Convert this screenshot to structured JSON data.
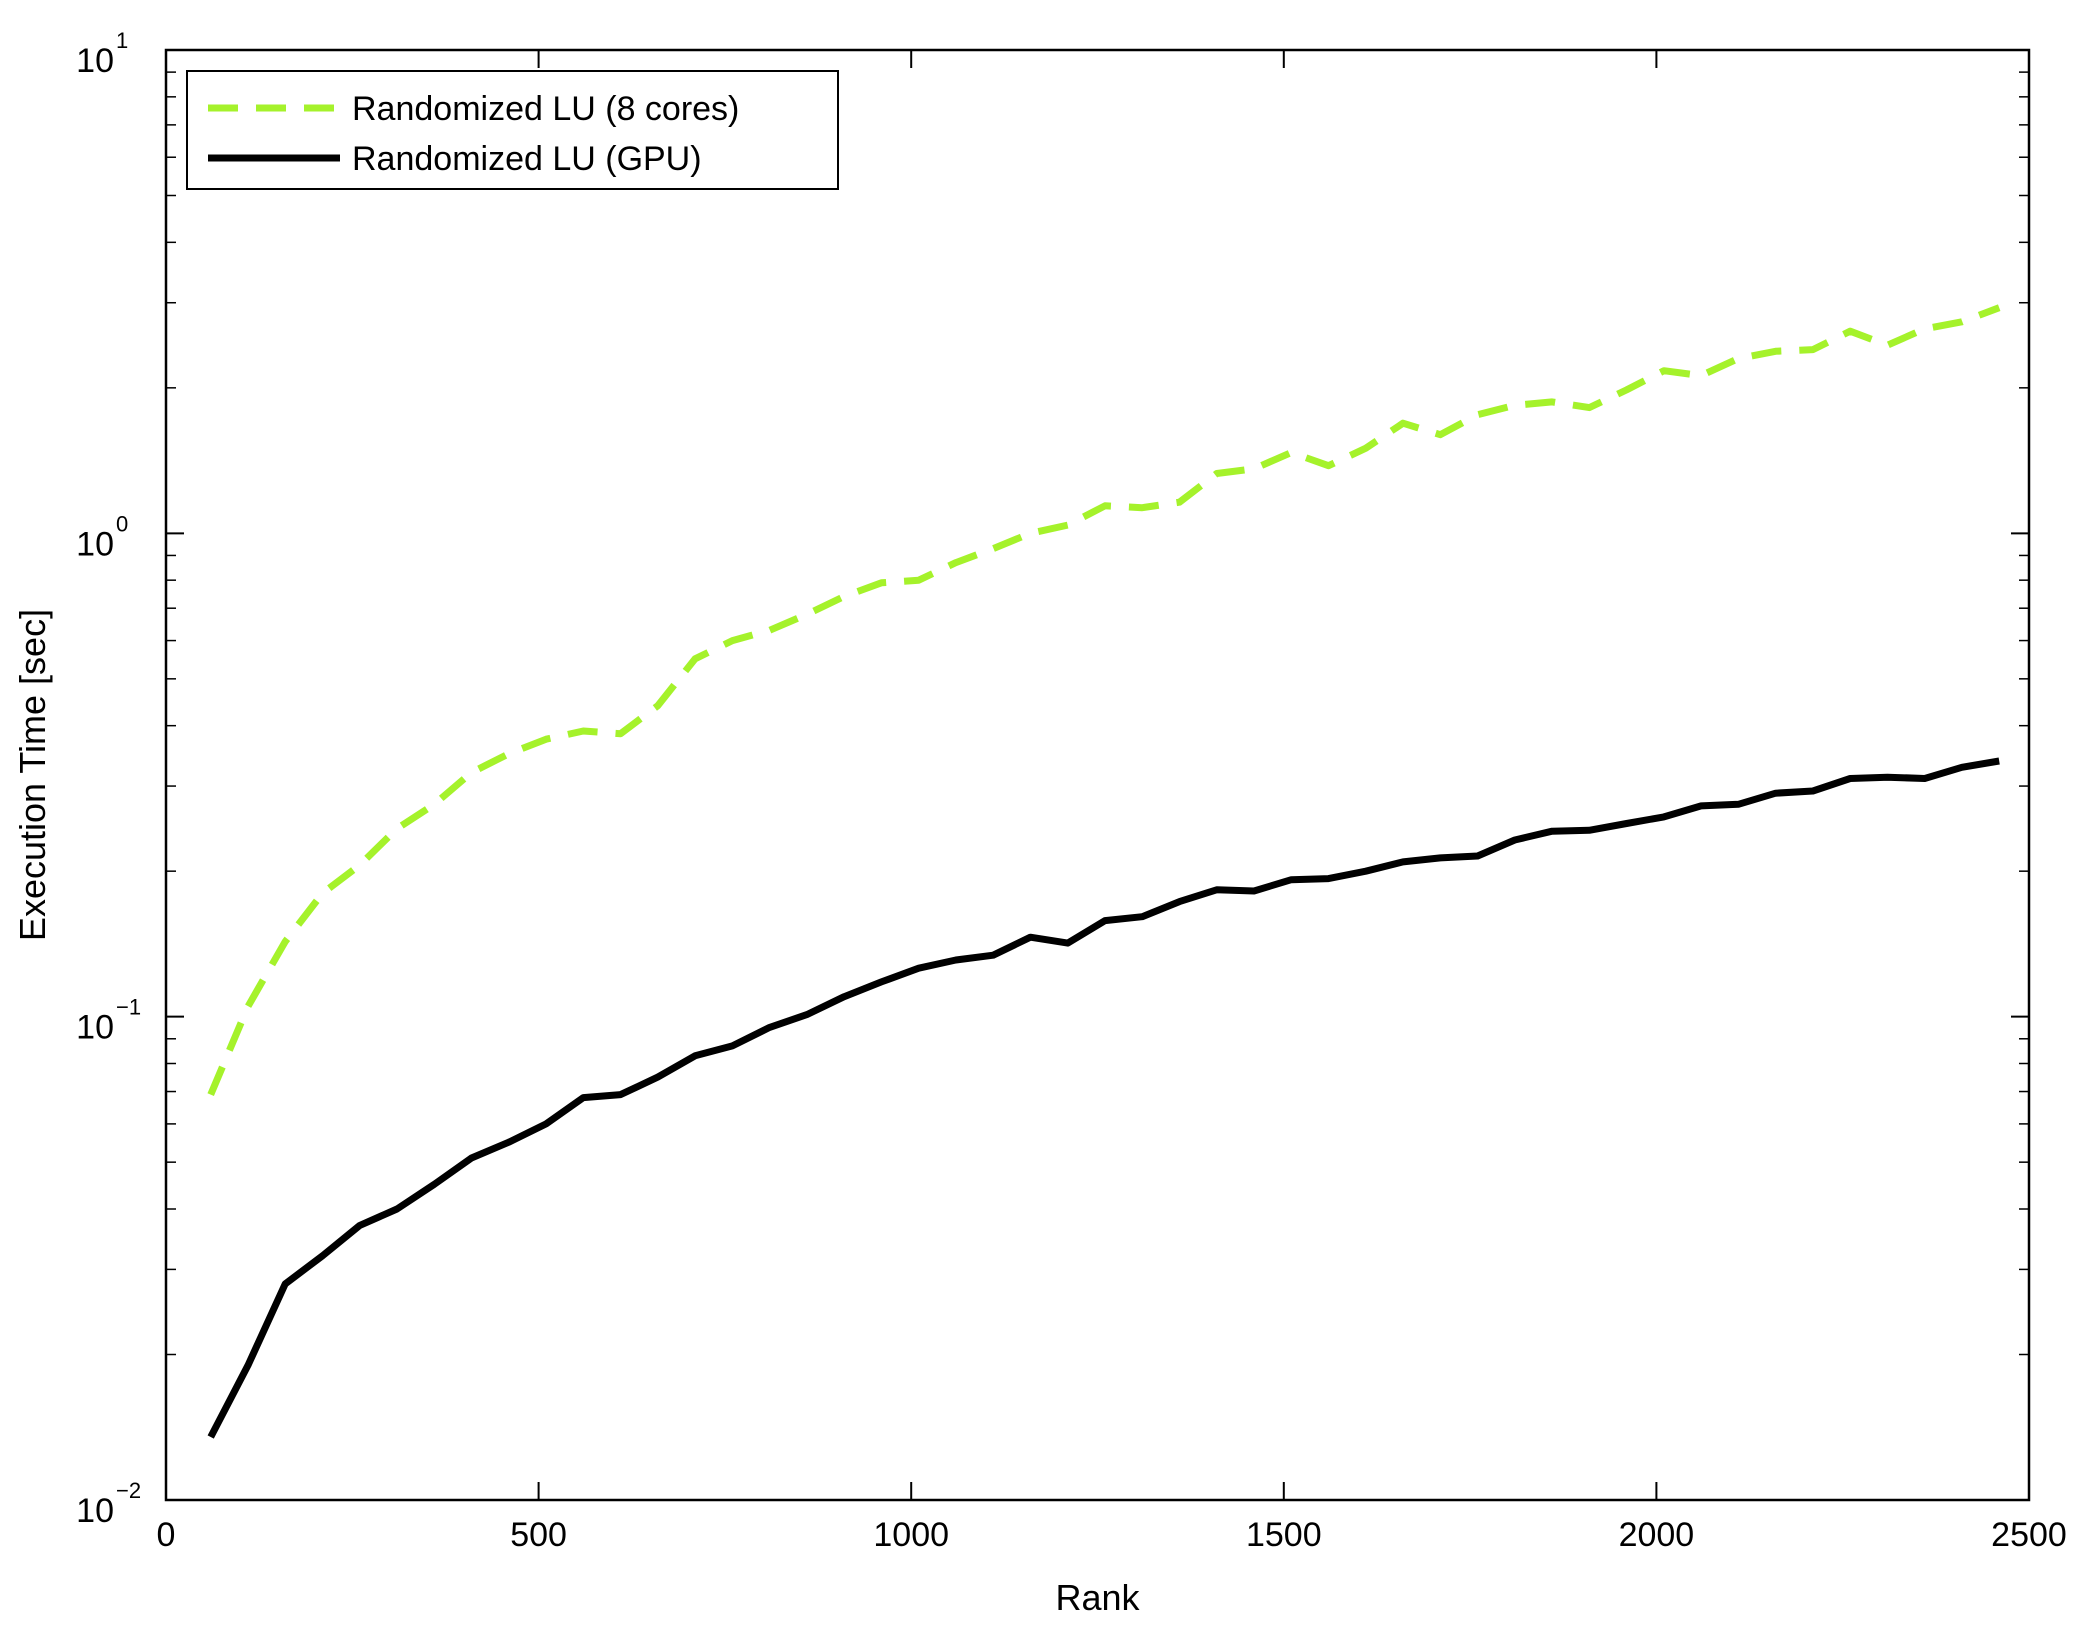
{
  "chart_data": {
    "type": "line",
    "xlabel": "Rank",
    "ylabel": "Execution Time [sec]",
    "xlim": [
      0,
      2500
    ],
    "ylim": [
      0.01,
      10
    ],
    "yscale": "log",
    "x_ticks": [
      0,
      500,
      1000,
      1500,
      2000,
      2500
    ],
    "y_ticks": [
      {
        "value": 0.01,
        "base": "10",
        "exp": "−2"
      },
      {
        "value": 0.1,
        "base": "10",
        "exp": "−1"
      },
      {
        "value": 1,
        "base": "10",
        "exp": "0"
      },
      {
        "value": 10,
        "base": "10",
        "exp": "1"
      }
    ],
    "grid": false,
    "legend_position": "top-left",
    "x": [
      60,
      110,
      160,
      210,
      260,
      310,
      360,
      410,
      460,
      510,
      560,
      610,
      660,
      710,
      760,
      810,
      860,
      910,
      960,
      1010,
      1060,
      1110,
      1160,
      1210,
      1260,
      1310,
      1360,
      1410,
      1460,
      1510,
      1560,
      1610,
      1660,
      1710,
      1760,
      1810,
      1860,
      1910,
      1960,
      2010,
      2060,
      2110,
      2160,
      2210,
      2260,
      2310,
      2360,
      2410,
      2460
    ],
    "series": [
      {
        "name": "Randomized LU (8 cores)",
        "color": "#a5f22b",
        "dash": "dashed",
        "values": [
          0.069,
          0.105,
          0.143,
          0.18,
          0.206,
          0.245,
          0.275,
          0.32,
          0.35,
          0.375,
          0.39,
          0.385,
          0.44,
          0.55,
          0.6,
          0.63,
          0.68,
          0.74,
          0.79,
          0.8,
          0.87,
          0.93,
          1.0,
          1.04,
          1.14,
          1.13,
          1.16,
          1.33,
          1.36,
          1.47,
          1.38,
          1.5,
          1.69,
          1.6,
          1.76,
          1.84,
          1.87,
          1.82,
          1.98,
          2.17,
          2.12,
          2.3,
          2.38,
          2.4,
          2.62,
          2.45,
          2.65,
          2.74,
          2.93
        ]
      },
      {
        "name": "Randomized LU (GPU)",
        "color": "#000000",
        "dash": "solid",
        "values": [
          0.0135,
          0.019,
          0.028,
          0.032,
          0.037,
          0.04,
          0.045,
          0.051,
          0.055,
          0.06,
          0.068,
          0.069,
          0.075,
          0.083,
          0.087,
          0.095,
          0.101,
          0.11,
          0.118,
          0.126,
          0.131,
          0.134,
          0.146,
          0.142,
          0.158,
          0.161,
          0.173,
          0.183,
          0.182,
          0.192,
          0.193,
          0.2,
          0.209,
          0.213,
          0.215,
          0.232,
          0.242,
          0.243,
          0.251,
          0.259,
          0.273,
          0.275,
          0.29,
          0.293,
          0.311,
          0.313,
          0.311,
          0.328,
          0.338
        ]
      }
    ]
  }
}
